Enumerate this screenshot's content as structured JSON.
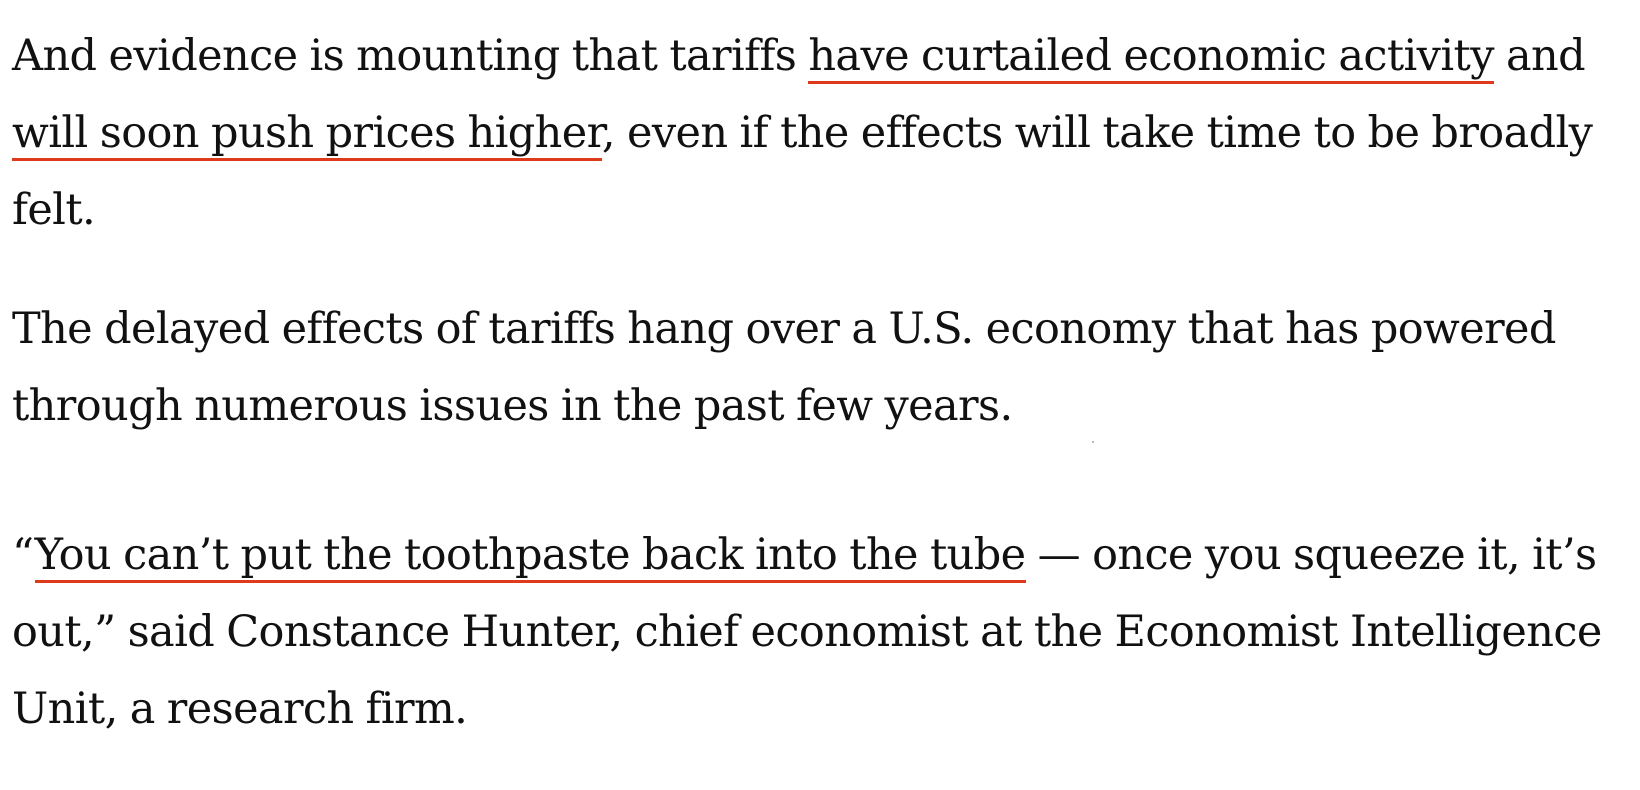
{
  "paragraphs": [
    {
      "before": "And evidence is mounting that tariffs ",
      "link1": "have curtailed economic activity",
      "middle": " and ",
      "link2": "will soon push prices higher",
      "after": ", even if the effects will take time to be broadly felt."
    },
    {
      "text": "The delayed effects of tariffs hang over a U.S. economy that has powered through numerous issues in the past few years."
    },
    {
      "open_quote": "“",
      "link": "You can’t put the toothpaste back into the tube",
      "after": " — once you squeeze it, it’s out,” said Constance Hunter, chief economist at the Economist Intelligence Unit, a research firm."
    }
  ],
  "colors": {
    "text": "#111111",
    "link_underline": "#e03a1c",
    "background": "#ffffff"
  }
}
